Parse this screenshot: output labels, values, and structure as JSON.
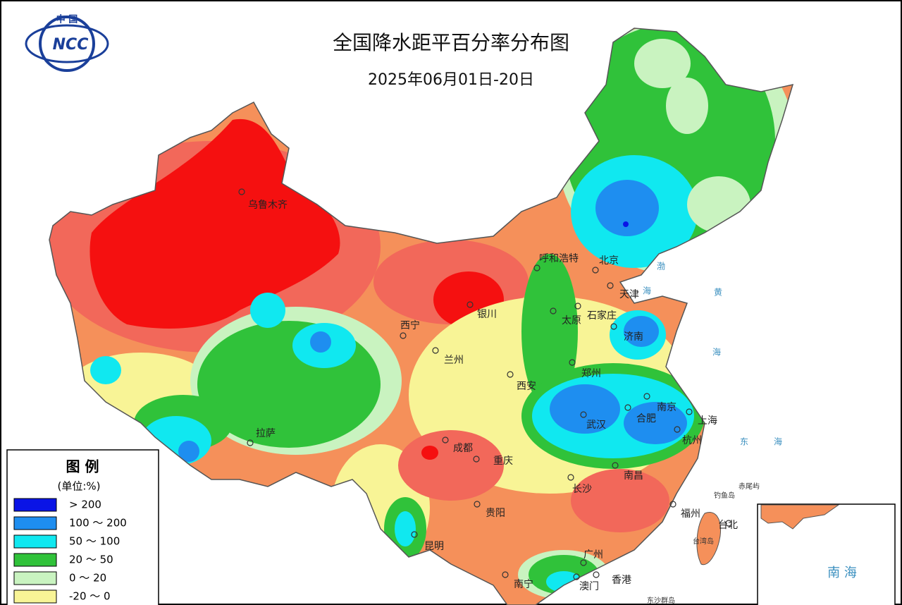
{
  "header": {
    "title": "全国降水距平百分率分布图",
    "subtitle": "2025年06月01日-20日"
  },
  "logo": {
    "top": "中 国",
    "name": "NCC"
  },
  "legend": {
    "title": "图 例",
    "unit": "(单位:%)",
    "items": [
      {
        "label": "> 200",
        "color": "#0a14e6"
      },
      {
        "label": "100 ～ 200",
        "color": "#1e8ef0"
      },
      {
        "label": "50 ～ 100",
        "color": "#10e8f0"
      },
      {
        "label": "20 ～ 50",
        "color": "#30c23a"
      },
      {
        "label": "0 ～ 20",
        "color": "#c9f3c0"
      },
      {
        "label": "-20 ～ 0",
        "color": "#f8f496"
      }
    ]
  },
  "places": [
    {
      "name": "乌鲁木齐"
    },
    {
      "name": "呼和浩特"
    },
    {
      "name": "北京"
    },
    {
      "name": "天津"
    },
    {
      "name": "石家庄"
    },
    {
      "name": "太原"
    },
    {
      "name": "济南"
    },
    {
      "name": "银川"
    },
    {
      "name": "西宁"
    },
    {
      "name": "兰州"
    },
    {
      "name": "西安"
    },
    {
      "name": "郑州"
    },
    {
      "name": "南京"
    },
    {
      "name": "合肥"
    },
    {
      "name": "上海"
    },
    {
      "name": "武汉"
    },
    {
      "name": "杭州"
    },
    {
      "name": "拉萨"
    },
    {
      "name": "成都"
    },
    {
      "name": "重庆"
    },
    {
      "name": "长沙"
    },
    {
      "name": "南昌"
    },
    {
      "name": "贵阳"
    },
    {
      "name": "福州"
    },
    {
      "name": "台北"
    },
    {
      "name": "昆明"
    },
    {
      "name": "广州"
    },
    {
      "name": "南宁"
    },
    {
      "name": "澳门"
    },
    {
      "name": "香港"
    }
  ],
  "seas": [
    "渤",
    "海",
    "黄",
    "海",
    "东",
    "海"
  ],
  "islands": [
    "钓鱼岛",
    "赤尾屿",
    "台湾岛",
    "东沙群岛"
  ],
  "inset": {
    "label": "南 海"
  }
}
